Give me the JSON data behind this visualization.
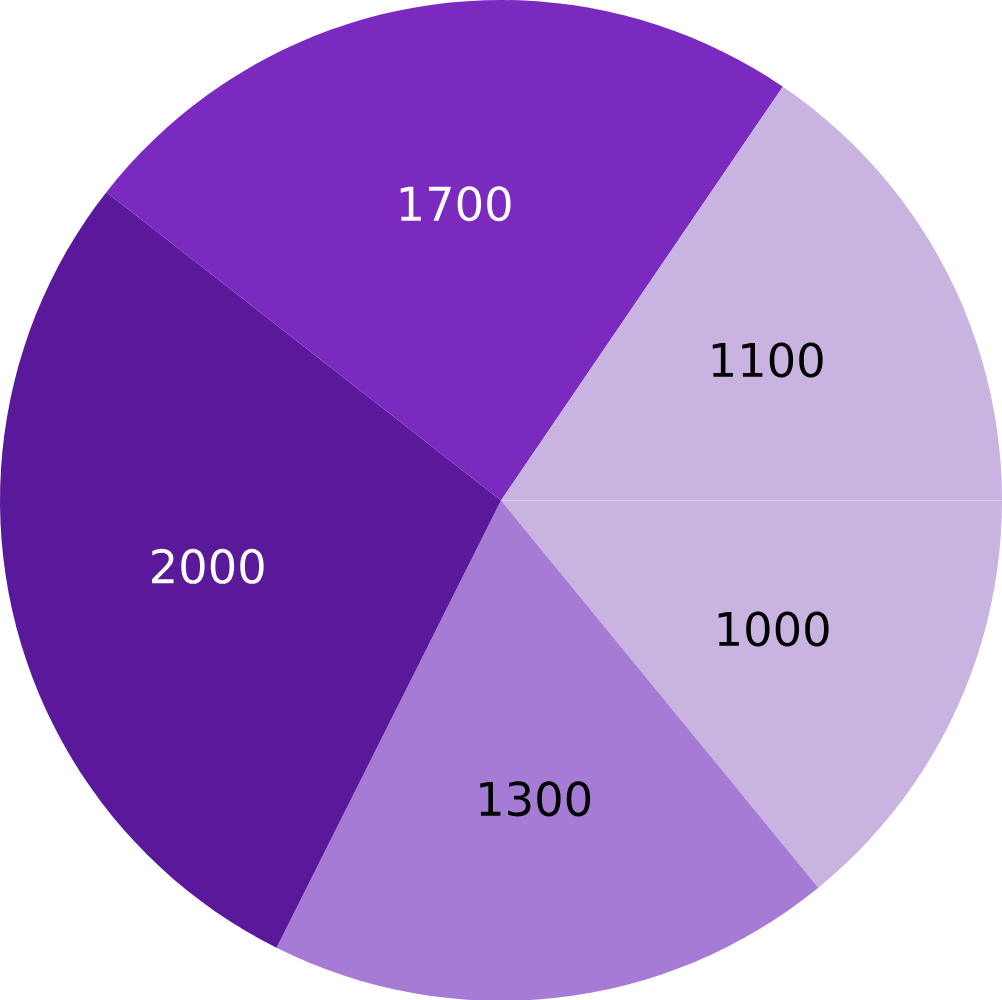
{
  "chart_data": {
    "type": "pie",
    "categories": [
      null,
      null,
      null,
      null,
      null
    ],
    "values": [
      1000,
      1300,
      2000,
      1700,
      1100
    ],
    "colors": [
      "#c9b3e0",
      "#a67bd6",
      "#5a189a",
      "#7b2abf",
      "#c9b3e0"
    ],
    "data_labels": true
  }
}
